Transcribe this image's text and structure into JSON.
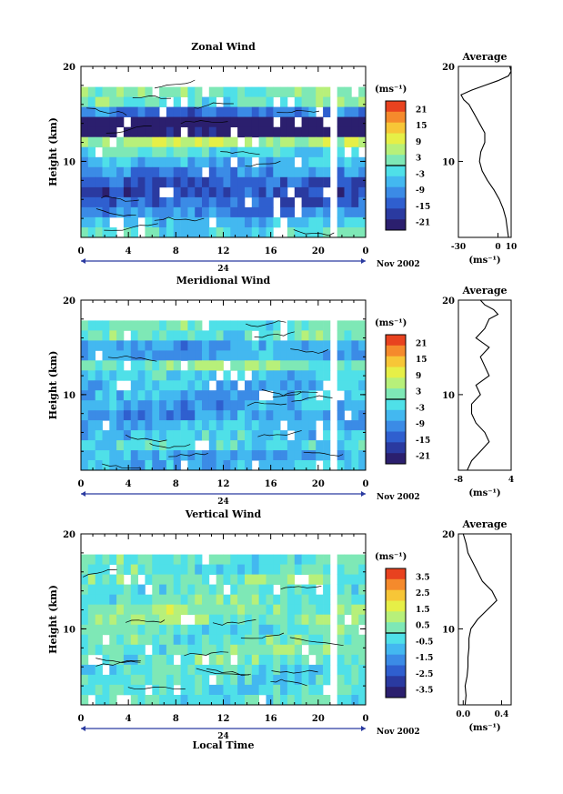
{
  "chart_data": [
    {
      "type": "heatmap",
      "title": "Zonal Wind",
      "ylabel": "Height (km)",
      "y_ticks": [
        "20",
        "10"
      ],
      "y_range_km": [
        2,
        20
      ],
      "x_ticks": [
        "0",
        "4",
        "8",
        "12",
        "16",
        "20",
        "0"
      ],
      "x_range_hours": [
        0,
        24
      ],
      "date_marker": "24",
      "date_label": "Nov 2002",
      "colorbar": {
        "unit": "(ms⁻¹)",
        "ticks": [
          "21",
          "15",
          "9",
          "3",
          "-3",
          "-9",
          "-15",
          "-21"
        ],
        "range": [
          -24,
          24
        ],
        "zero_contour": true
      },
      "profile": {
        "title": "Average",
        "x_ticks": [
          "-30",
          "0",
          "10"
        ],
        "xlabel": "(ms⁻¹)",
        "y_ticks": [
          "20",
          "10"
        ],
        "xlim": [
          -30,
          10
        ],
        "height_km": [
          2,
          3,
          4,
          5,
          6,
          7,
          8,
          9,
          10,
          11,
          12,
          13,
          14,
          15,
          16,
          16.5,
          17,
          17.5,
          18,
          18.5,
          19,
          19.5,
          20
        ],
        "values": [
          8,
          7,
          6,
          4,
          1,
          -3,
          -8,
          -12,
          -14,
          -13,
          -10,
          -10,
          -14,
          -18,
          -22,
          -26,
          -28,
          -20,
          -10,
          0,
          8,
          10,
          9
        ]
      },
      "field": {
        "rows": [
          -2,
          -6,
          -10,
          -14,
          -16,
          -14,
          -10,
          -6,
          -2,
          6,
          -22,
          -26,
          -12,
          0,
          2
        ],
        "gaps_hours": [
          [
            20.8,
            21.8
          ]
        ]
      }
    },
    {
      "type": "heatmap",
      "title": "Meridional Wind",
      "ylabel": "Height (km)",
      "y_ticks": [
        "20",
        "10"
      ],
      "y_range_km": [
        2,
        20
      ],
      "x_ticks": [
        "0",
        "4",
        "8",
        "12",
        "16",
        "20",
        "0"
      ],
      "x_range_hours": [
        0,
        24
      ],
      "date_marker": "24",
      "date_label": "Nov 2002",
      "colorbar": {
        "unit": "(ms⁻¹)",
        "ticks": [
          "21",
          "15",
          "9",
          "3",
          "-3",
          "-9",
          "-15",
          "-21"
        ],
        "range": [
          -24,
          24
        ],
        "zero_contour": true
      },
      "profile": {
        "title": "Average",
        "x_ticks": [
          "-8",
          "4"
        ],
        "xlabel": "(ms⁻¹)",
        "y_ticks": [
          "20",
          "10"
        ],
        "xlim": [
          -8,
          4
        ],
        "height_km": [
          2,
          3,
          4,
          5,
          6,
          7,
          8,
          9,
          10,
          11,
          12,
          13,
          14,
          15,
          16,
          17,
          18,
          18.5,
          19,
          19.5,
          20
        ],
        "values": [
          -6,
          -5,
          -3,
          -1,
          -2,
          -4,
          -5,
          -5,
          -3,
          -4,
          -1,
          -2,
          -3,
          -1,
          -4,
          -2,
          -1,
          1,
          0,
          -2,
          -3
        ]
      },
      "field": {
        "rows": [
          -6,
          -8,
          -2,
          -4,
          -6,
          -8,
          -8,
          -7,
          -6,
          -4,
          2,
          -6,
          -8,
          0,
          0
        ],
        "gaps_hours": [
          [
            20.8,
            21.8
          ]
        ]
      }
    },
    {
      "type": "heatmap",
      "title": "Vertical Wind",
      "ylabel": "Height (km)",
      "xlabel": "Local Time",
      "y_ticks": [
        "20",
        "10"
      ],
      "y_range_km": [
        2,
        20
      ],
      "x_ticks": [
        "0",
        "4",
        "8",
        "12",
        "16",
        "20",
        "0"
      ],
      "x_range_hours": [
        0,
        24
      ],
      "date_marker": "24",
      "date_label": "Nov 2002",
      "colorbar": {
        "unit": "(ms⁻¹)",
        "ticks": [
          "3.5",
          "2.5",
          "1.5",
          "0.5",
          "-0.5",
          "-1.5",
          "-2.5",
          "-3.5"
        ],
        "range": [
          -4,
          4
        ],
        "zero_contour": true
      },
      "profile": {
        "title": "Average",
        "x_ticks": [
          "0.0",
          "0.4"
        ],
        "xlabel": "(ms⁻¹)",
        "y_ticks": [
          "20",
          "10"
        ],
        "xlim": [
          -0.05,
          0.5
        ],
        "height_km": [
          2,
          3,
          4,
          5,
          6,
          7,
          8,
          9,
          10,
          11,
          12,
          13,
          14,
          15,
          16,
          17,
          18,
          19,
          20
        ],
        "values": [
          0.02,
          0.03,
          0.02,
          0.04,
          0.05,
          0.05,
          0.06,
          0.06,
          0.08,
          0.15,
          0.25,
          0.35,
          0.3,
          0.2,
          0.15,
          0.1,
          0.05,
          0.03,
          0.0
        ]
      },
      "field": {
        "rows": [
          -0.2,
          -0.4,
          -0.3,
          -0.2,
          0.0,
          0.2,
          0.1,
          0.0,
          0.4,
          0.6,
          0.1,
          0.0,
          0.2,
          0.0,
          -0.1
        ],
        "gaps_hours": [
          [
            20.8,
            21.8
          ]
        ]
      }
    }
  ]
}
